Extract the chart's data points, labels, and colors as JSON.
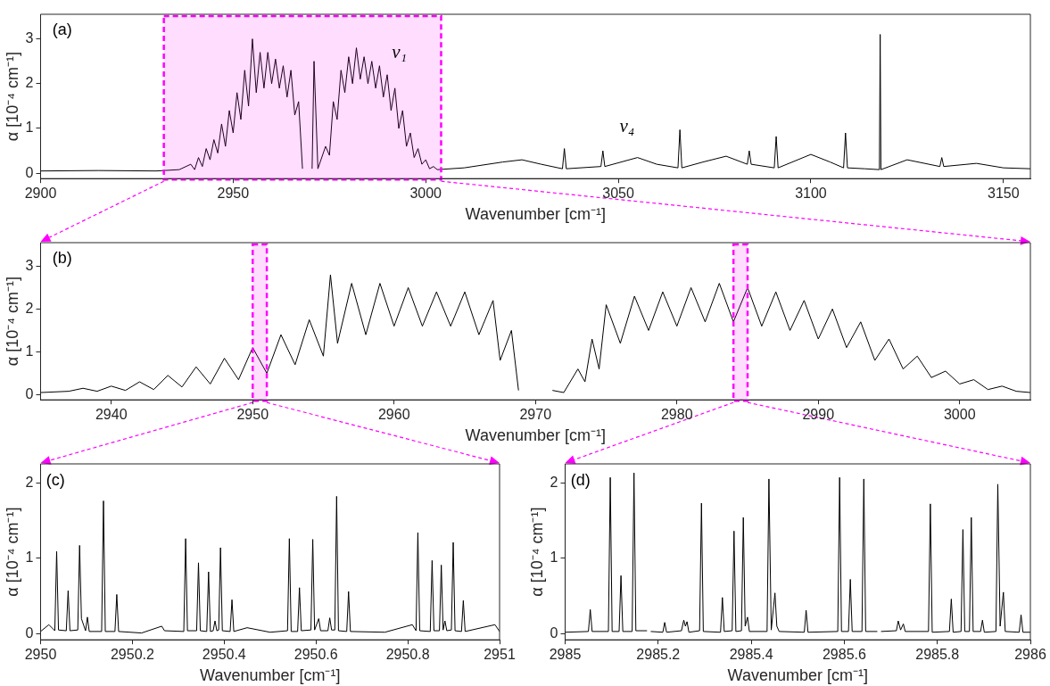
{
  "chart_data": [
    {
      "type": "line",
      "xlabel": "Wavenumber [cm⁻¹]",
      "ylabel": "α [10⁻⁴ cm⁻¹]",
      "color": "#000000",
      "marker": "none",
      "line_style": "solid",
      "grid": false,
      "xlim": [
        2900,
        3157
      ],
      "ylim": [
        -0.12,
        3.55
      ],
      "xticks": [
        2900,
        2950,
        3000,
        3050,
        3100,
        3150
      ],
      "yticks": [
        0,
        1,
        2,
        3
      ],
      "bands": [
        {
          "axis": "x",
          "from": 2932,
          "to": 3004,
          "color": "#ff00ff"
        }
      ],
      "annotations": [
        "(a)",
        "ν₁",
        "ν₄"
      ],
      "x": [
        2900,
        2915,
        2930,
        2936,
        2939,
        2940,
        2941,
        2942,
        2943,
        2944,
        2945,
        2946,
        2947,
        2948,
        2949,
        2950,
        2951,
        2952,
        2953,
        2954,
        2955,
        2956,
        2957,
        2958,
        2959,
        2960,
        2961,
        2962,
        2963,
        2964,
        2965,
        2966,
        2967,
        2968,
        2969,
        2970,
        2970.5,
        2971,
        2972,
        2974,
        2975,
        2976,
        2977,
        2978,
        2979,
        2980,
        2981,
        2982,
        2983,
        2984,
        2985,
        2986,
        2987,
        2988,
        2989,
        2990,
        2991,
        2992,
        2993,
        2994,
        2995,
        2996,
        2997,
        2998,
        2999,
        3000,
        3001,
        3002,
        3003,
        3010,
        3020,
        3025,
        3030,
        3035.5,
        3036,
        3036.5,
        3045.5,
        3046,
        3046.5,
        3055,
        3060,
        3065.5,
        3066,
        3066.5,
        3072,
        3078,
        3083.5,
        3084,
        3084.5,
        3090.5,
        3091,
        3091.5,
        3100,
        3105,
        3108.5,
        3109,
        3109.5,
        3114,
        3117.8,
        3118,
        3118.2,
        3125,
        3133.5,
        3134,
        3134.5,
        3143,
        3150,
        3157
      ],
      "values": [
        0.05,
        0.06,
        0.05,
        0.08,
        0.2,
        0.08,
        0.35,
        0.15,
        0.55,
        0.3,
        0.75,
        0.45,
        1.1,
        0.6,
        1.4,
        0.9,
        1.8,
        1.2,
        2.3,
        1.5,
        3.0,
        1.8,
        2.7,
        1.9,
        2.7,
        2.0,
        2.55,
        1.9,
        2.4,
        1.7,
        2.3,
        1.3,
        1.6,
        0.1,
        null,
        null,
        0.1,
        2.5,
        0.1,
        0.6,
        0.4,
        1.6,
        1.2,
        2.3,
        1.8,
        2.6,
        2.0,
        2.8,
        2.1,
        2.6,
        2.0,
        2.5,
        1.9,
        2.4,
        1.7,
        2.2,
        1.4,
        1.9,
        1.0,
        1.4,
        0.6,
        0.9,
        0.35,
        0.55,
        0.2,
        0.3,
        0.1,
        0.15,
        0.08,
        0.12,
        0.25,
        0.3,
        0.2,
        0.1,
        0.55,
        0.1,
        0.15,
        0.5,
        0.15,
        0.35,
        0.2,
        0.12,
        0.97,
        0.12,
        0.25,
        0.38,
        0.2,
        0.5,
        0.2,
        0.12,
        0.82,
        0.12,
        0.42,
        0.25,
        0.12,
        0.9,
        0.12,
        0.1,
        0.08,
        3.1,
        0.08,
        0.3,
        0.15,
        0.35,
        0.15,
        0.22,
        0.12,
        0.1
      ]
    },
    {
      "type": "line",
      "xlabel": "Wavenumber [cm⁻¹]",
      "ylabel": "α [10⁻⁴ cm⁻¹]",
      "color": "#000000",
      "marker": "none",
      "line_style": "solid",
      "grid": false,
      "xlim": [
        2935,
        3005
      ],
      "ylim": [
        -0.12,
        3.55
      ],
      "xticks": [
        2940,
        2950,
        2960,
        2970,
        2980,
        2990,
        3000
      ],
      "yticks": [
        0,
        1,
        2,
        3
      ],
      "bands": [
        {
          "axis": "x",
          "from": 2950,
          "to": 2951,
          "color": "#ff00ff"
        },
        {
          "axis": "x",
          "from": 2984,
          "to": 2985,
          "color": "#ff00ff"
        }
      ],
      "annotations": [
        "(b)"
      ],
      "x": [
        2935,
        2937,
        2938,
        2939,
        2940,
        2941,
        2942,
        2943,
        2944,
        2945,
        2946,
        2947,
        2948,
        2949,
        2950,
        2951,
        2952,
        2953,
        2954,
        2955,
        2955.5,
        2956,
        2957,
        2958,
        2959,
        2960,
        2961,
        2962,
        2963,
        2964,
        2965,
        2966,
        2967,
        2967.5,
        2968.3,
        2968.8,
        2969.3,
        2970,
        2970.8,
        2971.2,
        2972,
        2973,
        2973.5,
        2974,
        2974.5,
        2975,
        2976,
        2977,
        2978,
        2979,
        2980,
        2981,
        2982,
        2983,
        2984,
        2985,
        2986,
        2987,
        2988,
        2989,
        2990,
        2991,
        2992,
        2993,
        2994,
        2995,
        2996,
        2997,
        2998,
        2999,
        3000,
        3001,
        3002,
        3003,
        3004,
        3005
      ],
      "values": [
        0.05,
        0.08,
        0.15,
        0.08,
        0.2,
        0.1,
        0.3,
        0.12,
        0.45,
        0.18,
        0.65,
        0.25,
        0.85,
        0.35,
        1.1,
        0.5,
        1.4,
        0.7,
        1.75,
        0.9,
        2.8,
        1.2,
        2.6,
        1.4,
        2.6,
        1.6,
        2.5,
        1.6,
        2.4,
        1.6,
        2.4,
        1.4,
        2.2,
        0.8,
        1.5,
        0.1,
        null,
        null,
        null,
        0.1,
        0.05,
        0.6,
        0.3,
        1.3,
        0.6,
        2.1,
        1.2,
        2.3,
        1.5,
        2.4,
        1.6,
        2.5,
        1.7,
        2.6,
        1.7,
        2.5,
        1.6,
        2.4,
        1.5,
        2.2,
        1.3,
        2.0,
        1.1,
        1.7,
        0.8,
        1.3,
        0.6,
        0.9,
        0.4,
        0.55,
        0.25,
        0.35,
        0.12,
        0.2,
        0.08,
        0.05
      ]
    },
    {
      "type": "line",
      "xlabel": "Wavenumber [cm⁻¹]",
      "ylabel": "α [10⁻⁴ cm⁻¹]",
      "color": "#000000",
      "marker": "none",
      "line_style": "solid",
      "grid": false,
      "xlim": [
        2950,
        2951
      ],
      "ylim": [
        -0.08,
        2.25
      ],
      "xticks": [
        2950,
        2950.2,
        2950.4,
        2950.6,
        2950.8,
        2951
      ],
      "yticks": [
        0,
        1,
        2
      ],
      "annotations": [
        "(c)"
      ],
      "x": [
        2950,
        2950.018,
        2950.031,
        2950.035,
        2950.039,
        2950.056,
        2950.06,
        2950.064,
        2950.081,
        2950.085,
        2950.089,
        2950.098,
        2950.102,
        2950.106,
        2950.133,
        2950.137,
        2950.141,
        2950.162,
        2950.166,
        2950.17,
        2950.22,
        2950.264,
        2950.27,
        2950.312,
        2950.316,
        2950.32,
        2950.34,
        2950.344,
        2950.348,
        2950.362,
        2950.366,
        2950.37,
        2950.376,
        2950.38,
        2950.384,
        2950.388,
        2950.392,
        2950.396,
        2950.413,
        2950.417,
        2950.421,
        2950.45,
        2950.5,
        2950.538,
        2950.542,
        2950.546,
        2950.56,
        2950.564,
        2950.568,
        2950.589,
        2950.593,
        2950.597,
        2950.606,
        2950.61,
        2950.626,
        2950.63,
        2950.634,
        2950.641,
        2950.645,
        2950.649,
        2950.667,
        2950.671,
        2950.675,
        2950.75,
        2950.81,
        2950.818,
        2950.822,
        2950.826,
        2950.849,
        2950.853,
        2950.857,
        2950.869,
        2950.873,
        2950.877,
        2950.881,
        2950.885,
        2950.895,
        2950.899,
        2950.903,
        2950.917,
        2950.921,
        2950.925,
        2950.99,
        2951
      ],
      "values": [
        0.03,
        0.12,
        0.04,
        1.09,
        0.05,
        0.04,
        0.57,
        0.04,
        0.05,
        1.17,
        0.2,
        0.04,
        0.22,
        0.03,
        0.03,
        1.76,
        0.03,
        0.03,
        0.52,
        0.03,
        0.01,
        0.1,
        0.04,
        0.03,
        1.26,
        0.04,
        0.04,
        0.94,
        0.04,
        0.03,
        0.82,
        0.03,
        0.04,
        0.17,
        0.04,
        0.05,
        1.14,
        0.04,
        0.03,
        0.45,
        0.03,
        0.08,
        0.02,
        0.04,
        1.26,
        0.03,
        0.03,
        0.61,
        0.04,
        0.05,
        1.25,
        0.05,
        0.2,
        0.04,
        0.04,
        0.21,
        0.05,
        0.05,
        1.82,
        0.04,
        0.03,
        0.56,
        0.03,
        0.02,
        0.12,
        0.04,
        1.34,
        0.04,
        0.03,
        0.97,
        0.04,
        0.04,
        0.91,
        0.05,
        0.17,
        0.04,
        0.05,
        1.21,
        0.04,
        0.03,
        0.44,
        0.03,
        0.12,
        0.03
      ]
    },
    {
      "type": "line",
      "xlabel": "Wavenumber [cm⁻¹]",
      "ylabel": "α [10⁻⁴ cm⁻¹]",
      "color": "#000000",
      "marker": "none",
      "line_style": "solid",
      "grid": false,
      "xlim": [
        2985,
        2986
      ],
      "ylim": [
        -0.08,
        2.25
      ],
      "xticks": [
        2985,
        2985.2,
        2985.4,
        2985.6,
        2985.8,
        2986
      ],
      "yticks": [
        0,
        1,
        2
      ],
      "annotations": [
        "(d)"
      ],
      "x": [
        2985,
        2985.05,
        2985.054,
        2985.058,
        2985.093,
        2985.097,
        2985.101,
        2985.116,
        2985.12,
        2985.124,
        2985.144,
        2985.148,
        2985.152,
        2985.176,
        2985.18,
        2985.184,
        2985.21,
        2985.214,
        2985.218,
        2985.25,
        2985.255,
        2985.2585,
        2985.262,
        2985.266,
        2985.289,
        2985.293,
        2985.297,
        2985.334,
        2985.338,
        2985.342,
        2985.359,
        2985.363,
        2985.367,
        2985.379,
        2985.383,
        2985.387,
        2985.392,
        2985.396,
        2985.434,
        2985.438,
        2985.443,
        2985.451,
        2985.455,
        2985.46,
        2985.514,
        2985.518,
        2985.522,
        2985.586,
        2985.59,
        2985.594,
        2985.609,
        2985.613,
        2985.617,
        2985.638,
        2985.642,
        2985.646,
        2985.671,
        2985.675,
        2985.679,
        2985.712,
        2985.716,
        2985.721,
        2985.727,
        2985.731,
        2985.781,
        2985.785,
        2985.789,
        2985.826,
        2985.83,
        2985.834,
        2985.851,
        2985.855,
        2985.859,
        2985.869,
        2985.873,
        2985.877,
        2985.893,
        2985.897,
        2985.901,
        2985.926,
        2985.93,
        2985.935,
        2985.942,
        2985.946,
        2985.976,
        2985.98,
        2985.984,
        2986
      ],
      "values": [
        0.02,
        0.03,
        0.32,
        0.03,
        0.03,
        2.07,
        0.03,
        0.03,
        0.77,
        0.03,
        0.03,
        2.13,
        0.04,
        0.04,
        null,
        0.03,
        0.02,
        0.15,
        0.02,
        0.04,
        0.18,
        0.1,
        0.16,
        0.02,
        0.04,
        1.73,
        0.03,
        0.02,
        0.48,
        0.03,
        0.04,
        1.36,
        0.03,
        0.04,
        1.54,
        0.1,
        0.22,
        0.03,
        0.03,
        2.05,
        0.05,
        0.54,
        0.1,
        0.03,
        0.02,
        0.31,
        0.02,
        0.03,
        2.07,
        0.03,
        0.03,
        0.72,
        0.03,
        0.03,
        2.05,
        0.03,
        0.03,
        null,
        0.03,
        0.04,
        0.17,
        0.05,
        0.13,
        0.03,
        0.03,
        1.72,
        0.02,
        0.03,
        0.46,
        0.02,
        0.03,
        1.38,
        0.03,
        0.03,
        1.54,
        0.03,
        0.03,
        0.18,
        0.02,
        0.03,
        1.98,
        0.1,
        0.55,
        0.03,
        0.02,
        0.25,
        0.02,
        0.02
      ]
    }
  ]
}
